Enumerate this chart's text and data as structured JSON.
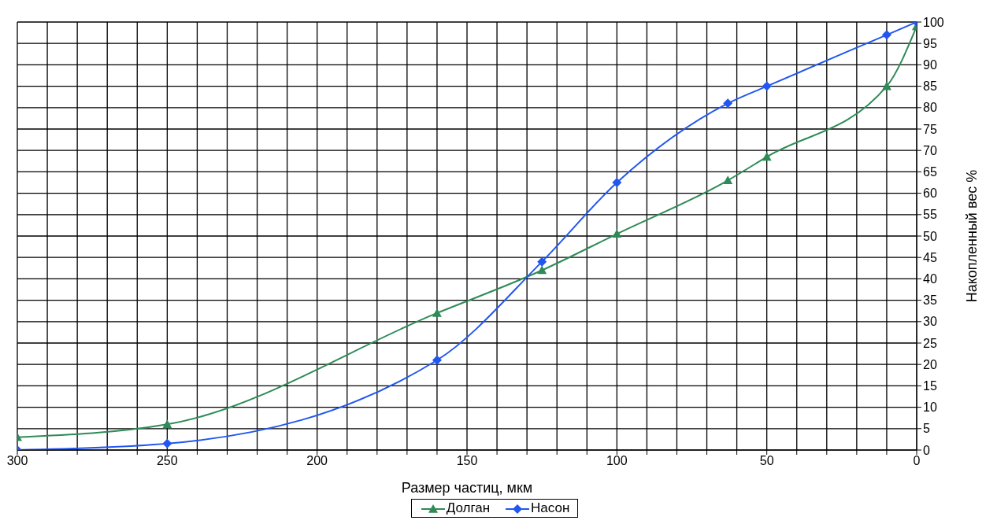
{
  "chart_data": {
    "type": "line",
    "xlabel": "Размер частиц, мкм",
    "ylabel": "Накопленный вес %",
    "x": [
      300,
      250,
      160,
      125,
      100,
      63,
      50,
      10,
      0
    ],
    "series": [
      {
        "name": "Долган",
        "color": "#2e8b57",
        "marker": "triangle",
        "values": [
          3,
          6,
          32,
          42,
          50.5,
          63,
          68.5,
          85,
          99
        ]
      },
      {
        "name": "Насон",
        "color": "#2157f0",
        "marker": "diamond",
        "values": [
          0,
          1.5,
          21,
          44,
          62.5,
          81,
          85,
          97,
          100
        ]
      }
    ],
    "xlim": [
      300,
      0
    ],
    "xticks": [
      300,
      {
        "value": 290,
        "label": null
      },
      {
        "value": 280,
        "label": null
      },
      {
        "value": 270,
        "label": null
      },
      {
        "value": 260,
        "label": null
      },
      250,
      {
        "value": 240,
        "label": null
      },
      {
        "value": 230,
        "label": null
      },
      {
        "value": 220,
        "label": null
      },
      {
        "value": 210,
        "label": null
      },
      200,
      {
        "value": 190,
        "label": null
      },
      {
        "value": 180,
        "label": null
      },
      {
        "value": 170,
        "label": null
      },
      {
        "value": 160,
        "label": null
      },
      150,
      {
        "value": 140,
        "label": null
      },
      {
        "value": 130,
        "label": null
      },
      {
        "value": 120,
        "label": null
      },
      {
        "value": 110,
        "label": null
      },
      100,
      {
        "value": 90,
        "label": null
      },
      {
        "value": 80,
        "label": null
      },
      {
        "value": 70,
        "label": null
      },
      {
        "value": 60,
        "label": null
      },
      50,
      {
        "value": 40,
        "label": null
      },
      {
        "value": 30,
        "label": null
      },
      {
        "value": 20,
        "label": null
      },
      {
        "value": 10,
        "label": null
      },
      0
    ],
    "ylim": [
      0,
      100
    ],
    "yticks": [
      0,
      5,
      10,
      15,
      20,
      25,
      30,
      35,
      40,
      45,
      50,
      55,
      60,
      65,
      70,
      75,
      80,
      85,
      90,
      95,
      100
    ],
    "grid": true,
    "legend": "bottom",
    "line_style": "solid"
  }
}
